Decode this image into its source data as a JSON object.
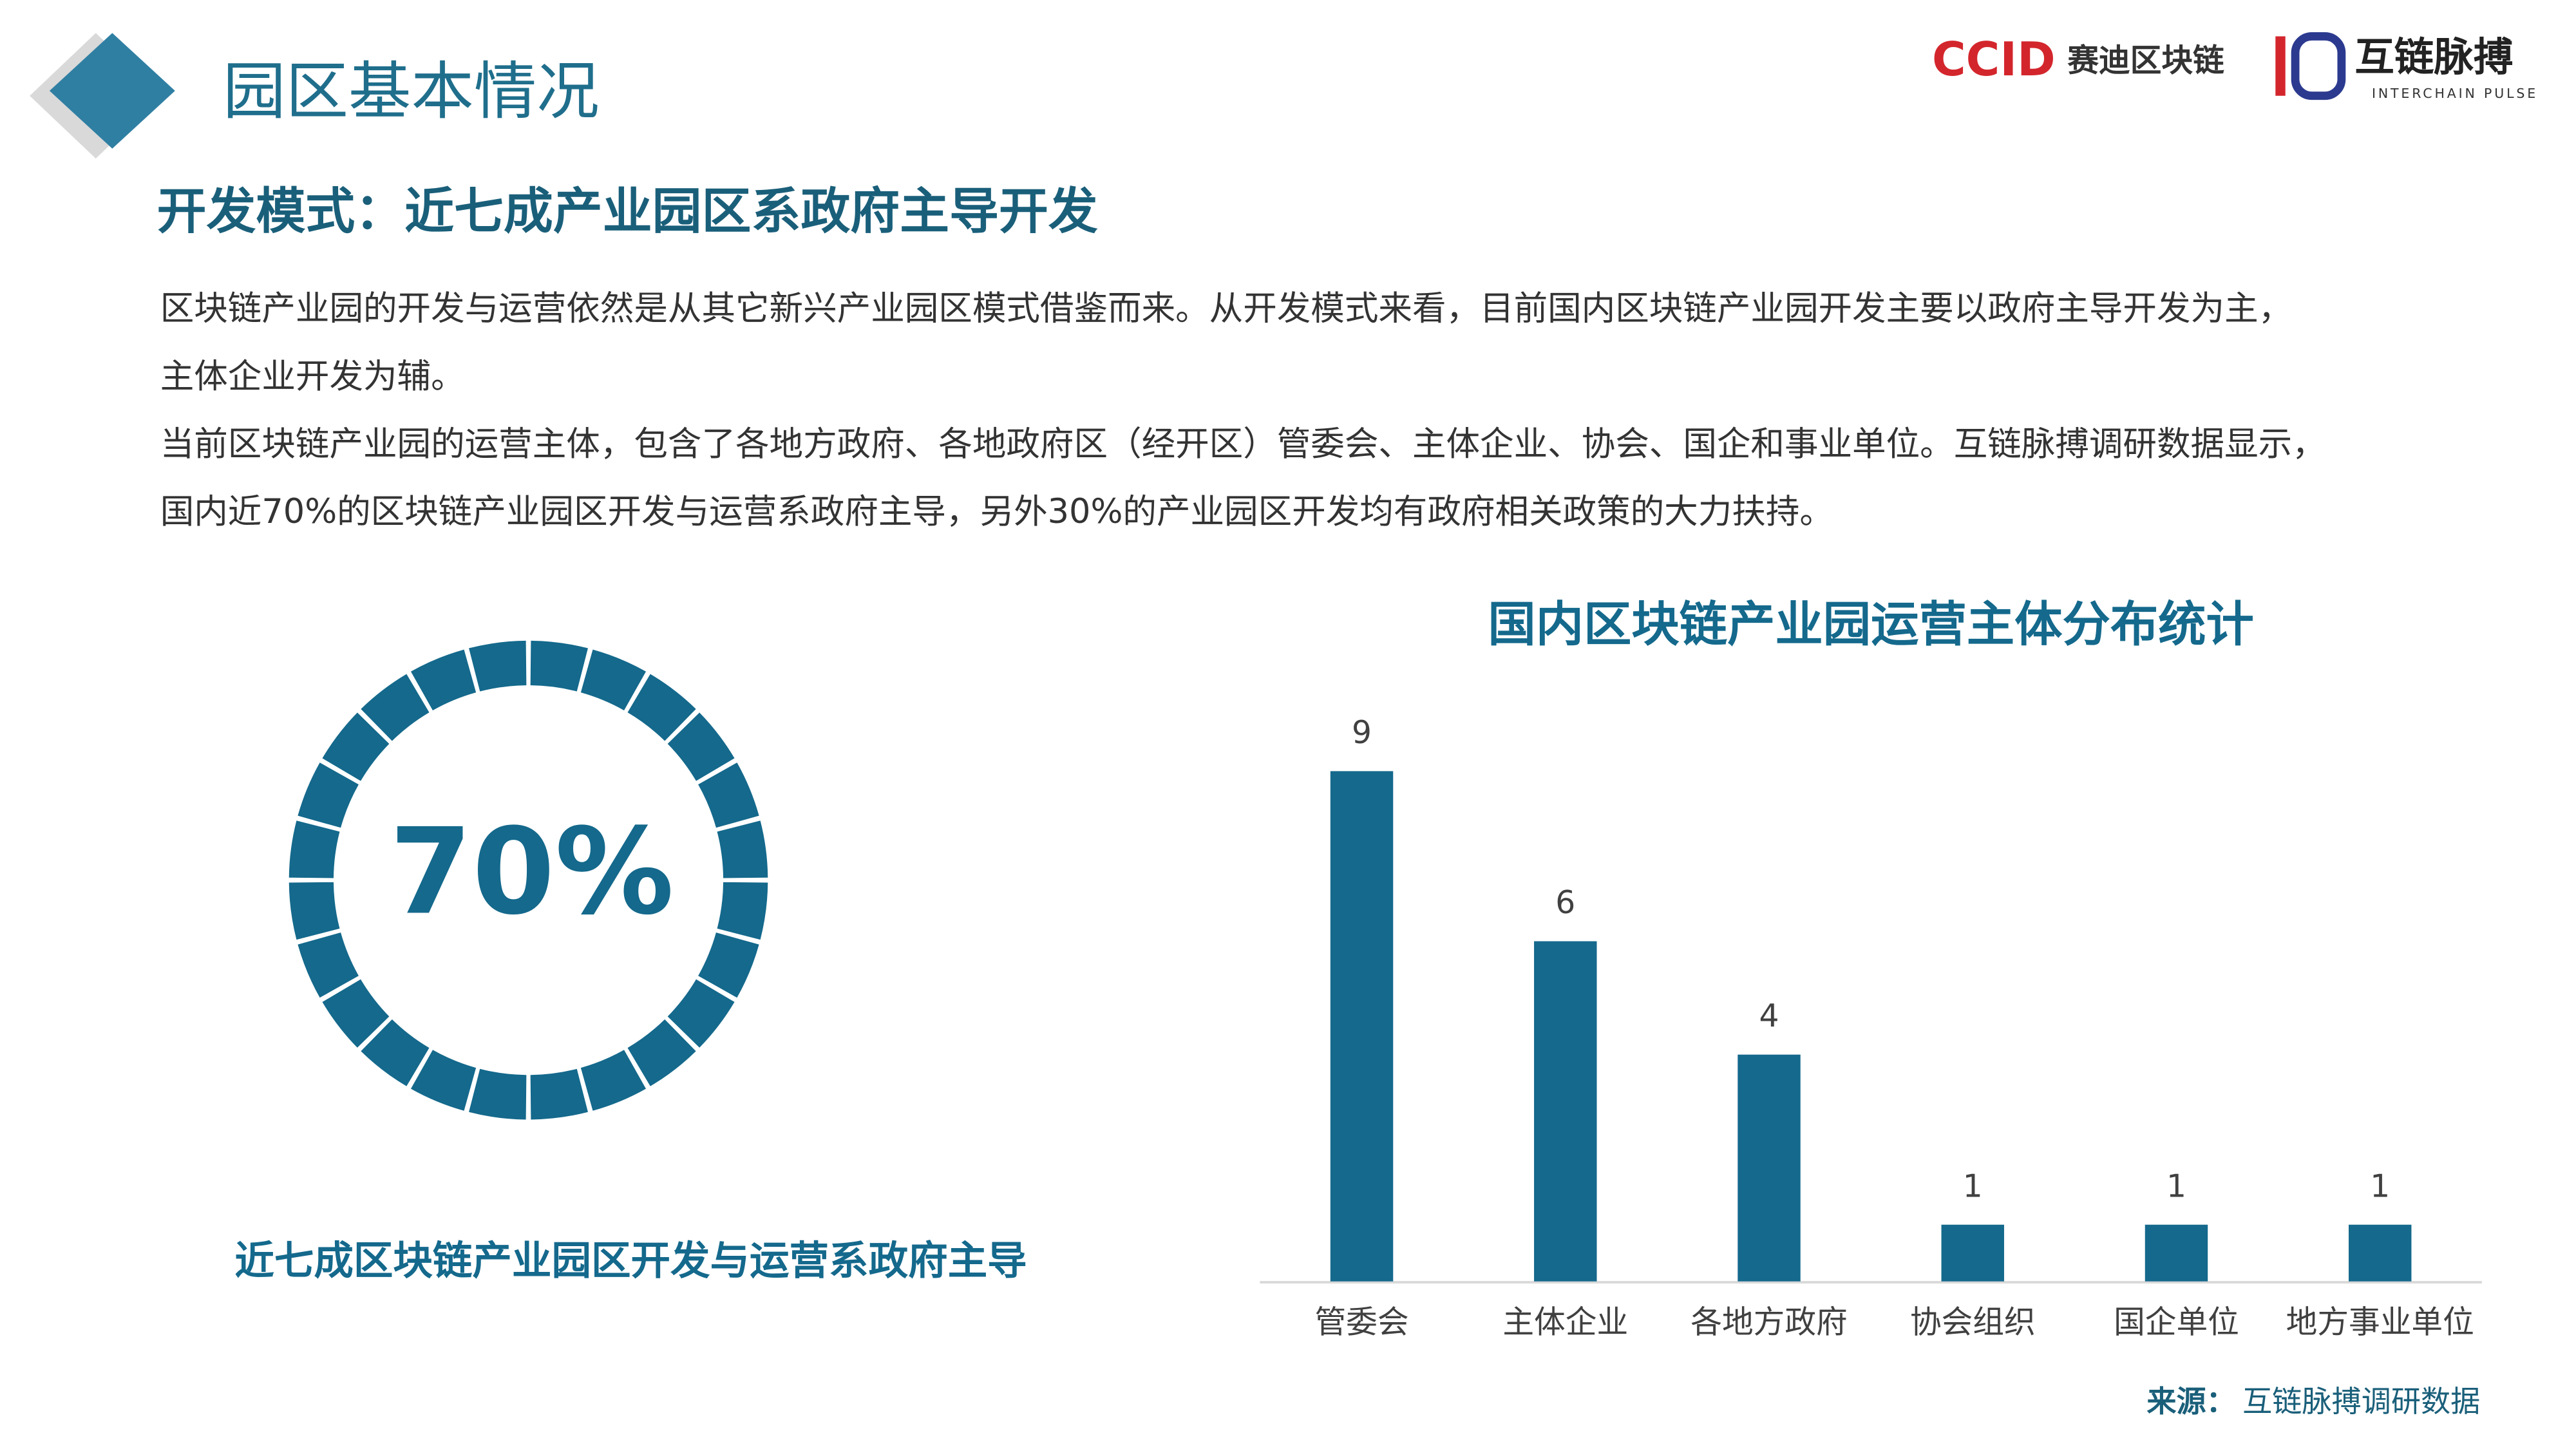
{
  "header": {
    "title": "园区基本情况",
    "logo_ccid": "CCID",
    "logo_ccid_text": "赛迪区块链",
    "logo_pulse": "互链脉搏",
    "logo_pulse_en": "INTERCHAIN PULSE"
  },
  "section_title": "开发模式：近七成产业园区系政府主导开发",
  "body_lines": [
    "区块链产业园的开发与运营依然是从其它新兴产业园区模式借鉴而来。从开发模式来看，目前国内区块链产业园开发主要以政府主导开发为主，",
    "主体企业开发为辅。",
    "当前区块链产业园的运营主体，包含了各地方政府、各地政府区（经开区）管委会、主体企业、协会、国企和事业单位。互链脉搏调研数据显示，",
    "国内近70%的区块链产业园区开发与运营系政府主导，另外30%的产业园区开发均有政府相关政策的大力扶持。"
  ],
  "donut": {
    "label": "70%",
    "caption": "近七成区块链产业园区开发与运营系政府主导"
  },
  "chart_data": {
    "type": "bar",
    "title": "国内区块链产业园运营主体分布统计",
    "categories": [
      "管委会",
      "主体企业",
      "各地方政府",
      "协会组织",
      "国企单位",
      "地方事业单位"
    ],
    "values": [
      9,
      6,
      4,
      1,
      1,
      1
    ],
    "color": "#14698c"
  },
  "source": {
    "label": "来源：",
    "text": "互链脉搏调研数据"
  }
}
